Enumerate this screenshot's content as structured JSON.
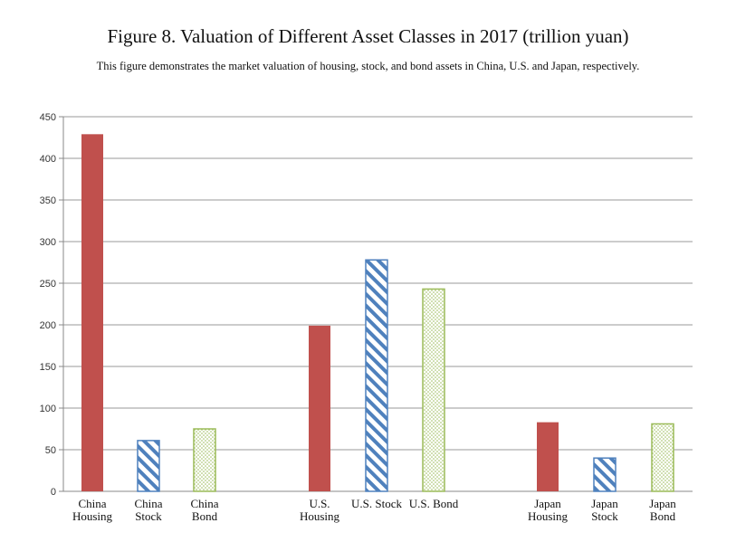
{
  "chart_data": {
    "type": "bar",
    "title": "Figure 8. Valuation of Different Asset Classes in 2017 (trillion yuan)",
    "subtitle": "This figure demonstrates the market valuation of housing, stock, and bond assets in China, U.S. and Japan, respectively.",
    "ylim": [
      0,
      450
    ],
    "yticks": [
      0,
      50,
      100,
      150,
      200,
      250,
      300,
      350,
      400,
      450
    ],
    "grid": true,
    "categories": [
      {
        "lines": [
          "China",
          "Housing"
        ],
        "value": 429,
        "style": "solid"
      },
      {
        "lines": [
          "China",
          "Stock"
        ],
        "value": 61,
        "style": "stripe"
      },
      {
        "lines": [
          "China",
          "Bond"
        ],
        "value": 75,
        "style": "dots"
      },
      {
        "lines": [
          "U.S.",
          "Housing"
        ],
        "value": 199,
        "style": "solid"
      },
      {
        "lines": [
          "U.S. Stock"
        ],
        "value": 278,
        "style": "stripe"
      },
      {
        "lines": [
          "U.S. Bond"
        ],
        "value": 243,
        "style": "dots"
      },
      {
        "lines": [
          "Japan",
          "Housing"
        ],
        "value": 83,
        "style": "solid"
      },
      {
        "lines": [
          "Japan",
          "Stock"
        ],
        "value": 40,
        "style": "stripe"
      },
      {
        "lines": [
          "Japan",
          "Bond"
        ],
        "value": 81,
        "style": "dots"
      }
    ],
    "colors": {
      "solid": "#c0504d",
      "stripe": "#4f81bd",
      "dots": "#9bbb59"
    }
  }
}
